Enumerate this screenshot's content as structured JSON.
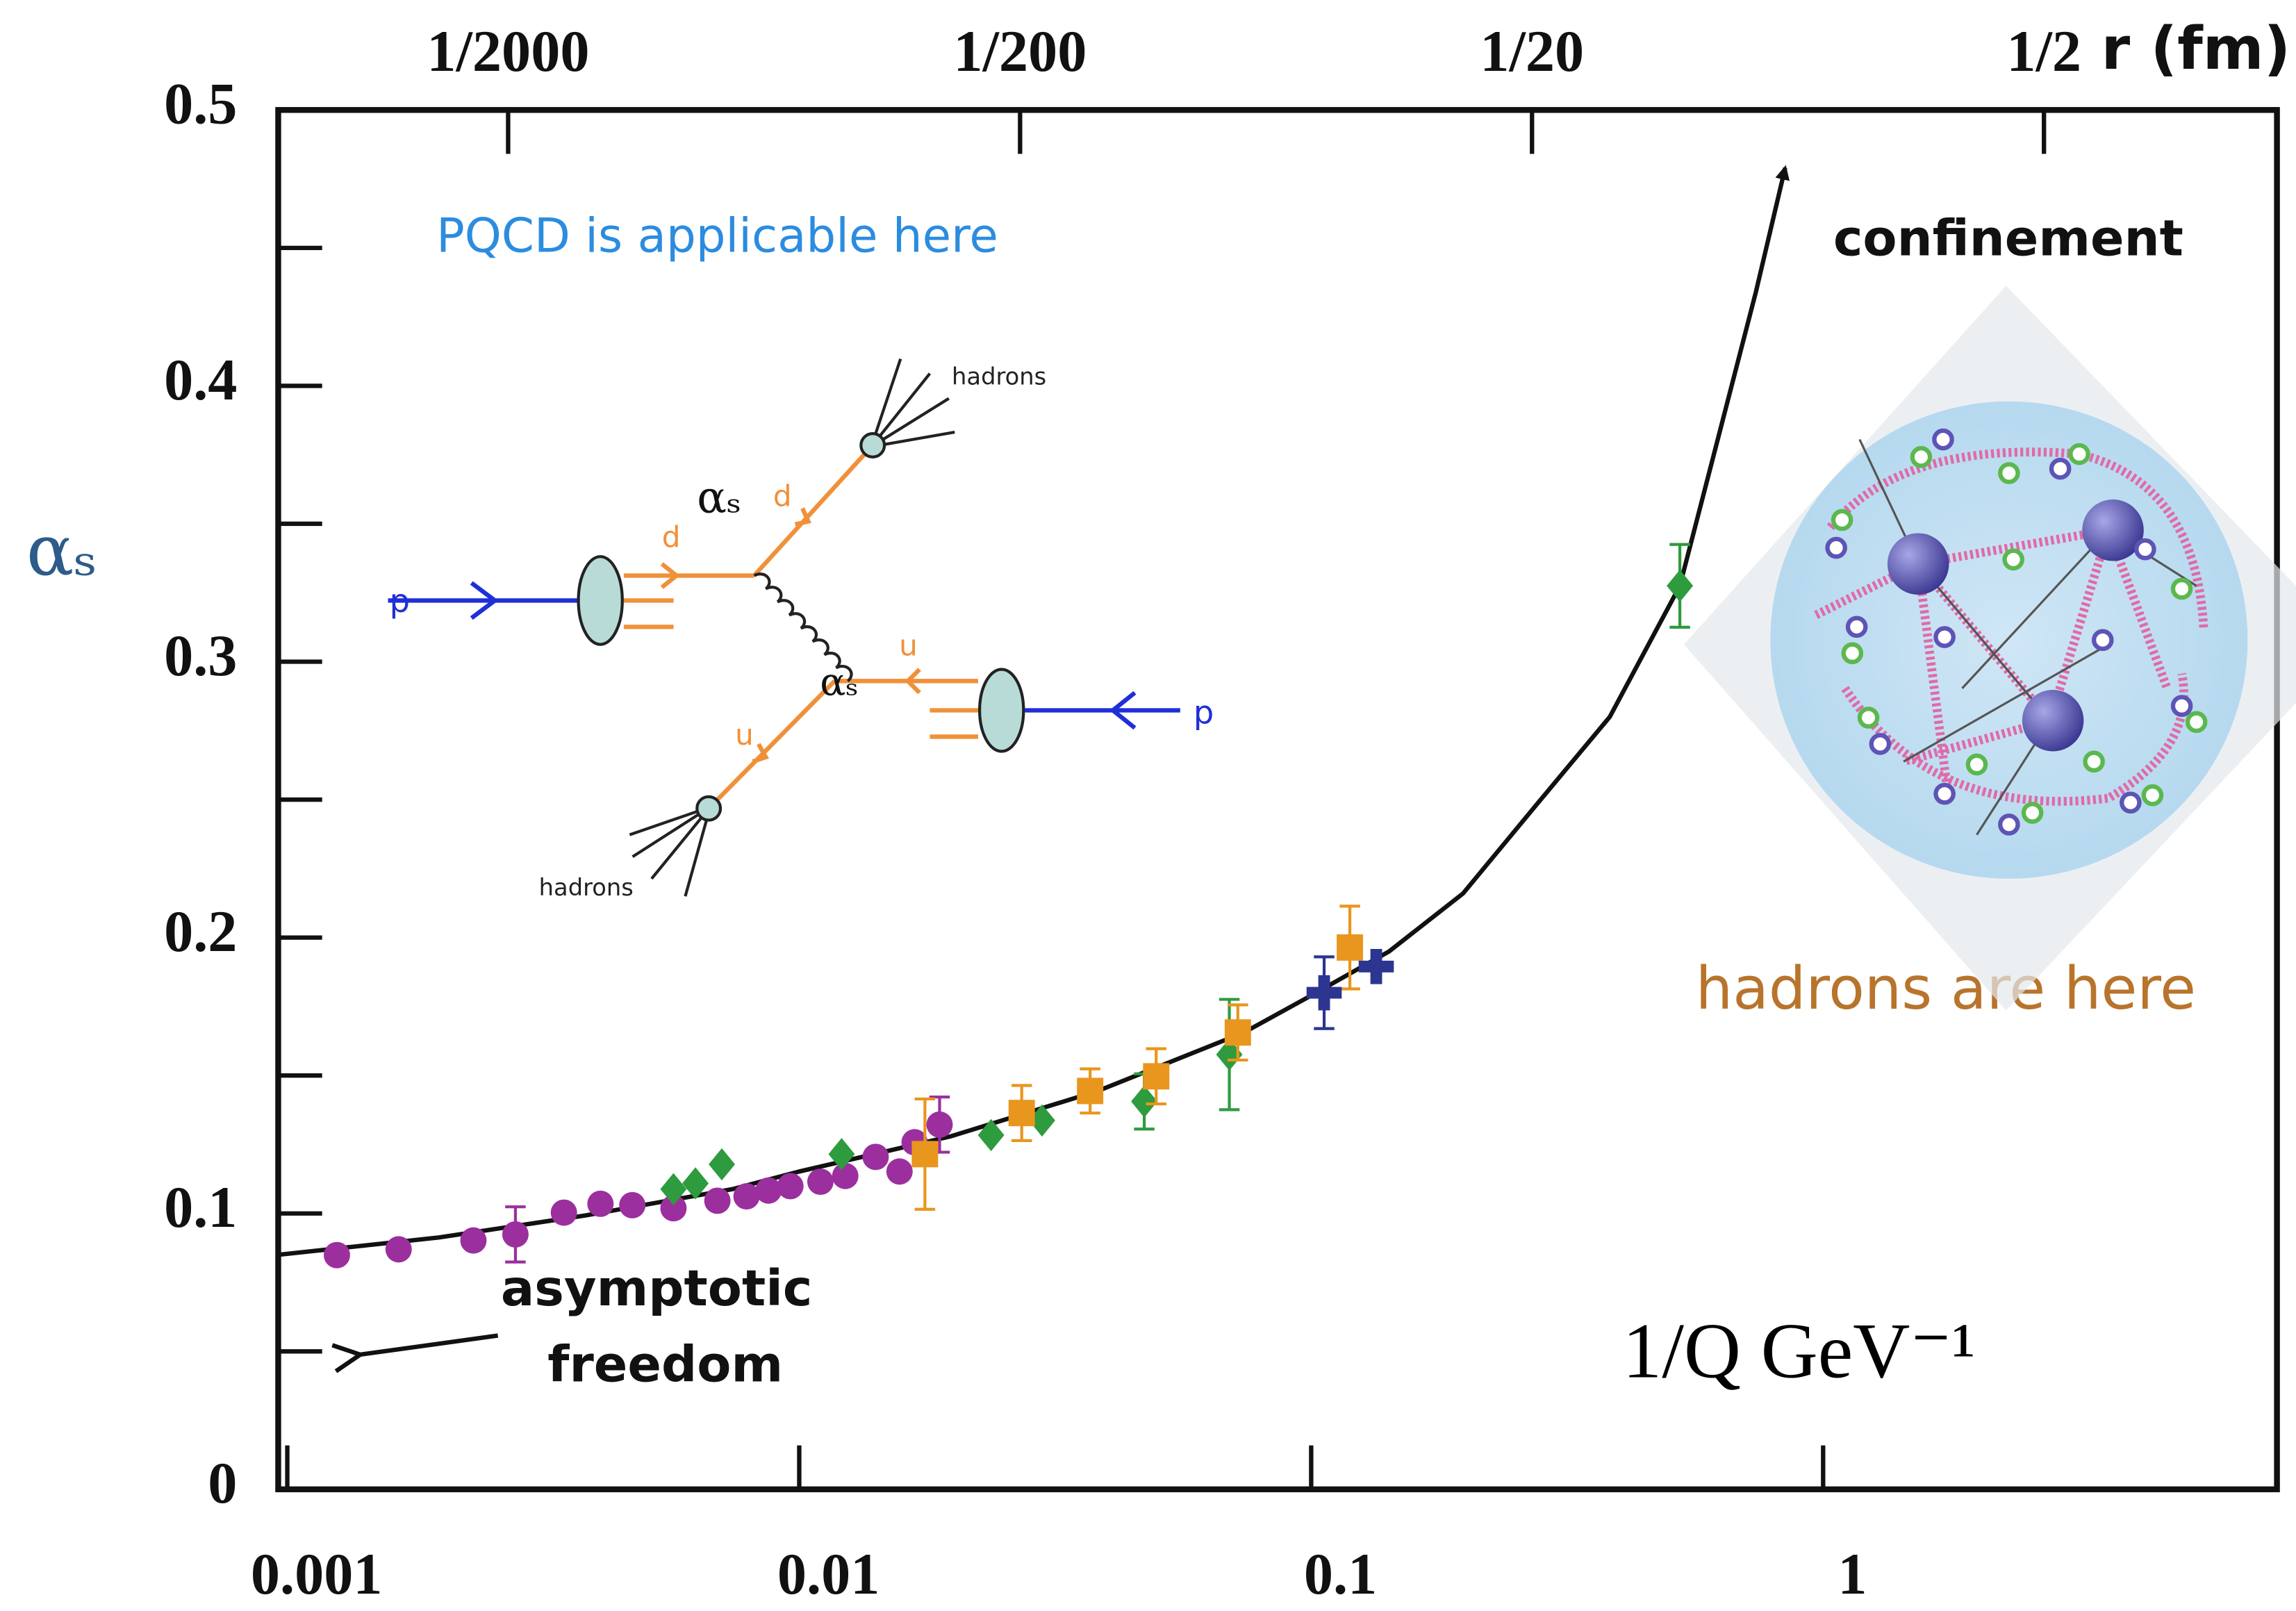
{
  "chart_data": {
    "type": "scatter",
    "xlabel": "1/Q  GeV⁻¹",
    "ylabel": "αₛ",
    "x2label": "r (fm)",
    "xscale": "log",
    "xlim": [
      0.00096,
      7.7
    ],
    "xticks": [
      0.001,
      0.01,
      0.1,
      1
    ],
    "x2ticks": [
      {
        "value": 0.0027,
        "label": "1/2000"
      },
      {
        "value": 0.027,
        "label": "1/200"
      },
      {
        "value": 0.27,
        "label": "1/20"
      },
      {
        "value": 2.7,
        "label": "1/2"
      }
    ],
    "ylim": [
      0,
      0.5
    ],
    "yticks": [
      0,
      0.1,
      0.2,
      0.3,
      0.4,
      0.5
    ],
    "yminorticks": [
      0.05,
      0.15,
      0.25,
      0.35,
      0.45
    ],
    "grid": false,
    "annotations": [
      "PQCD is applicable here",
      "confinement",
      "hadrons are here",
      "asymptotic",
      "freedom"
    ],
    "series": [
      {
        "marker": "line",
        "color": "#111111",
        "x": [
          0.00096,
          0.00198,
          0.00383,
          0.0074,
          0.01,
          0.0198,
          0.0383,
          0.0739,
          0.1,
          0.142,
          0.198,
          0.275,
          0.383,
          0.525,
          0.739,
          0.843
        ],
        "values": [
          0.085,
          0.0913,
          0.0993,
          0.1088,
          0.1152,
          0.128,
          0.1444,
          0.1656,
          0.179,
          0.195,
          0.216,
          0.248,
          0.28,
          0.3275,
          0.434,
          0.479
        ]
      },
      {
        "marker": "circle",
        "color": "#9b2f9e",
        "x": [
          0.00125,
          0.00165,
          0.00231,
          0.00279,
          0.00347,
          0.00409,
          0.00472,
          0.00568,
          0.00692,
          0.00789,
          0.00871,
          0.00961,
          0.011,
          0.0123,
          0.0141,
          0.0157,
          0.0168,
          0.0188
        ],
        "values": [
          0.0849,
          0.087,
          0.0902,
          0.0924,
          0.1003,
          0.1035,
          0.103,
          0.1019,
          0.1046,
          0.1062,
          0.1083,
          0.1099,
          0.1115,
          0.1136,
          0.1205,
          0.1152,
          0.1258,
          0.1322
        ],
        "errors": [
          null,
          null,
          null,
          0.01,
          null,
          null,
          null,
          null,
          null,
          null,
          null,
          null,
          null,
          null,
          null,
          null,
          null,
          0.01
        ]
      },
      {
        "marker": "diamond",
        "color": "#2e9b3e",
        "x": [
          0.00568,
          0.00627,
          0.00706,
          0.0121,
          0.0237,
          0.0298,
          0.0472,
          0.0692,
          0.525
        ],
        "values": [
          0.1088,
          0.1109,
          0.1178,
          0.1215,
          0.1284,
          0.1337,
          0.1406,
          0.1576,
          0.3275
        ],
        "errors": [
          null,
          null,
          null,
          null,
          null,
          null,
          0.01,
          0.02,
          0.015
        ]
      },
      {
        "marker": "square",
        "color": "#e8961e",
        "x": [
          0.0176,
          0.0272,
          0.037,
          0.0498,
          0.0719,
          0.119
        ],
        "values": [
          0.1215,
          0.1364,
          0.1444,
          0.1497,
          0.1656,
          0.1964
        ],
        "errors": [
          0.02,
          0.01,
          0.008,
          0.01,
          0.01,
          0.015
        ]
      },
      {
        "marker": "plus",
        "color": "#2c3590",
        "x": [
          0.106,
          0.134
        ],
        "values": [
          0.18,
          0.1895
        ],
        "errors": [
          0.013,
          null
        ]
      }
    ]
  },
  "diagram": {
    "labels": [
      "hadrons",
      "hadrons",
      "p",
      "p",
      "d",
      "d",
      "u",
      "u",
      "αₛ",
      "αₛ"
    ]
  }
}
